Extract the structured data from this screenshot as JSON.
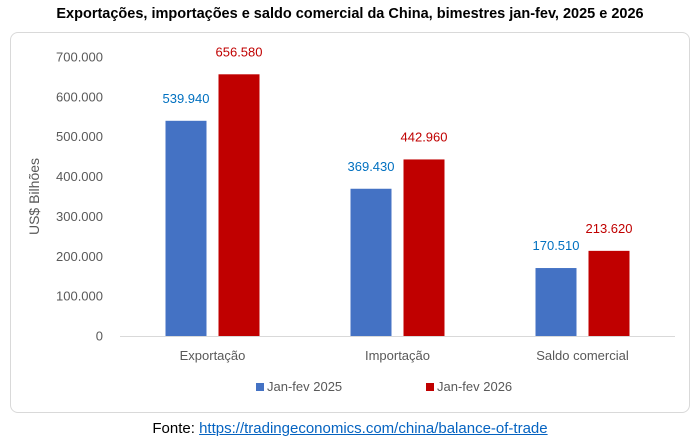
{
  "chart_data": {
    "type": "bar",
    "title": "Exportações, importações e saldo comercial da China, bimestres jan-fev, 2025 e 2026",
    "ylabel": "US$ Bilhões",
    "xlabel": "",
    "categories": [
      "Exportação",
      "Importação",
      "Saldo comercial"
    ],
    "series": [
      {
        "name": "Jan-fev 2025",
        "values": [
          539940,
          369430,
          170510
        ],
        "labels": [
          "539.940",
          "369.430",
          "170.510"
        ],
        "color": "#4472c4",
        "label_color": "#0070c0"
      },
      {
        "name": "Jan-fev 2026",
        "values": [
          656580,
          442960,
          213620
        ],
        "labels": [
          "656.580",
          "442.960",
          "213.620"
        ],
        "color": "#c00000",
        "label_color": "#c00000"
      }
    ],
    "ylim": [
      0,
      700000
    ],
    "yticks": [
      0,
      100000,
      200000,
      300000,
      400000,
      500000,
      600000,
      700000
    ],
    "ytick_labels": [
      "0",
      "100.000",
      "200.000",
      "300.000",
      "400.000",
      "500.000",
      "600.000",
      "700.000"
    ],
    "grid": false,
    "legend_position": "bottom"
  },
  "source": {
    "prefix": "Fonte: ",
    "link_text": "https://tradingeconomics.com/china/balance-of-trade"
  }
}
